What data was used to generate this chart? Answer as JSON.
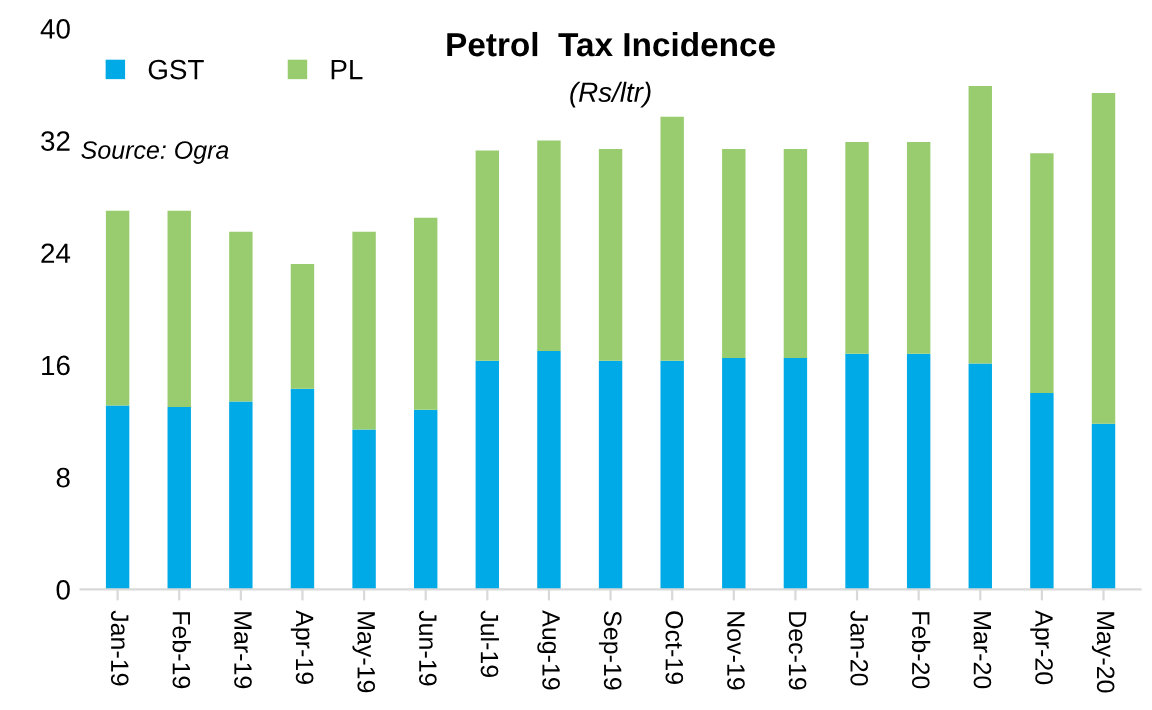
{
  "chart_data": {
    "type": "bar",
    "title": "Petrol  Tax Incidence",
    "subtitle": "(Rs/ltr)",
    "annotations": [
      "Source: Ogra"
    ],
    "categories": [
      "Jan-19",
      "Feb-19",
      "Mar-19",
      "Apr-19",
      "May-19",
      "Jun-19",
      "Jul-19",
      "Aug-19",
      "Sep-19",
      "Oct-19",
      "Nov-19",
      "Dec-19",
      "Jan-20",
      "Feb-20",
      "Mar-20",
      "Apr-20",
      "May-20"
    ],
    "stacked": true,
    "series": [
      {
        "name": "GST",
        "color": "#00aae6",
        "values": [
          13.1,
          13.0,
          13.4,
          14.3,
          11.4,
          12.8,
          16.3,
          17.0,
          16.3,
          16.3,
          16.5,
          16.5,
          16.8,
          16.8,
          16.1,
          14.0,
          11.8
        ]
      },
      {
        "name": "PL",
        "color": "#99cc6e",
        "values": [
          13.9,
          14.0,
          12.1,
          8.9,
          14.1,
          13.7,
          15.0,
          15.0,
          15.1,
          17.4,
          14.9,
          14.9,
          15.1,
          15.1,
          19.8,
          17.1,
          23.6
        ]
      }
    ],
    "ylim": [
      0,
      40
    ],
    "yticks": [
      0,
      8,
      16,
      24,
      32,
      40
    ],
    "grid": false,
    "legend": "top left"
  }
}
